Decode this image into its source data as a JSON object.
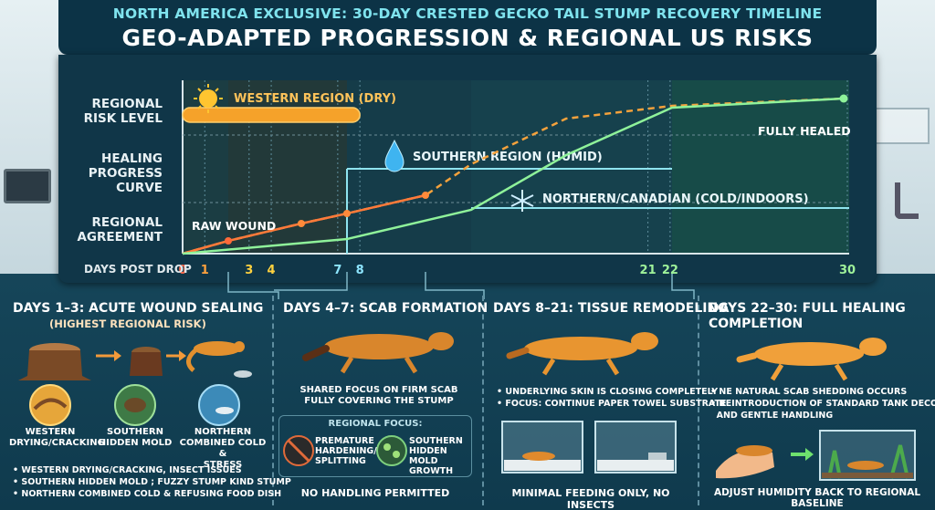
{
  "header": {
    "subtitle": "NORTH AMERICA EXCLUSIVE: 30-DAY CRESTED GECKO TAIL STUMP RECOVERY TIMELINE",
    "title": "GEO-ADAPTED PROGRESSION & REGIONAL US RISKS"
  },
  "row_labels": {
    "risk": [
      "REGIONAL",
      "RISK LEVEL"
    ],
    "healing": [
      "HEALING",
      "PROGRESS",
      "CURVE"
    ],
    "agreement": [
      "REGIONAL",
      "AGREEMENT"
    ]
  },
  "timeline": {
    "axis_label": "DAYS POST DROP",
    "ticks": [
      {
        "day": 0,
        "label": "0",
        "color": "#ff6a4a"
      },
      {
        "day": 1,
        "label": "1",
        "color": "#ffa13d"
      },
      {
        "day": 3,
        "label": "3",
        "color": "#ffd23f"
      },
      {
        "day": 4,
        "label": "4",
        "color": "#ffd23f"
      },
      {
        "day": 7,
        "label": "7",
        "color": "#8ee6ff"
      },
      {
        "day": 8,
        "label": "8",
        "color": "#8ee6ff"
      },
      {
        "day": 21,
        "label": "21",
        "color": "#9ff29a"
      },
      {
        "day": 22,
        "label": "22",
        "color": "#9ff29a"
      },
      {
        "day": 30,
        "label": "30",
        "color": "#9ff29a"
      }
    ],
    "western_label": "WESTERN REGION (DRY)",
    "southern_label": "SOUTHERN REGION (HUMID)",
    "northern_label": "NORTHERN/CANADIAN (COLD/INDOORS)",
    "raw_wound_label": "RAW WOUND",
    "fully_healed_label": "FULLY HEALED",
    "western_range": [
      0,
      8
    ],
    "southern_range": [
      4,
      21
    ],
    "northern_range": [
      8,
      30
    ]
  },
  "sections": {
    "s1": {
      "title": "DAYS 1–3: ACUTE WOUND SEALING",
      "subtitle": "(HIGHEST REGIONAL RISK)",
      "icons": [
        {
          "label": "WESTERN\nDRYING/CRACKING",
          "l1": "WESTERN",
          "l2": "DRYING/CRACKING"
        },
        {
          "label": "SOUTHERN\nHIDDEN MOLD",
          "l1": "SOUTHERN",
          "l2": "HIDDEN MOLD"
        },
        {
          "label": "NORTHERN\nCOMBINED COLD &\nSTRESS",
          "l1": "NORTHERN",
          "l2": "COMBINED COLD &",
          "l3": "STRESS"
        }
      ],
      "bullets": [
        "• WESTERN DRYING/CRACKING, INSECT ISSUES",
        "• SOUTHERN HIDDEN MOLD ; FUZZY STUMP KIND STUMP",
        "• NORTHERN COMBINED COLD & REFUSING FOOD DISH"
      ]
    },
    "s2": {
      "title": "DAYS 4–7: SCAB FORMATION",
      "desc1": "SHARED FOCUS ON FIRM SCAB",
      "desc2": "FULLY COVERING THE STUMP",
      "regional_focus": "REGIONAL FOCUS:",
      "focus_a1": "PREMATURE",
      "focus_a2": "HARDENING/",
      "focus_a3": "SPLITTING",
      "focus_b1": "SOUTHERN",
      "focus_b2": "HIDDEN MOLD",
      "focus_b3": "GROWTH",
      "footer": "NO HANDLING PERMITTED"
    },
    "s3": {
      "title": "DAYS 8–21: TISSUE REMODELING",
      "bullets": [
        "• UNDERLYING SKIN IS CLOSING COMPLETELY",
        "• FOCUS: CONTINUE PAPER TOWEL SUBSTRATE"
      ],
      "footer": "MINIMAL FEEDING ONLY, NO INSECTS"
    },
    "s4": {
      "title1": "DAYS 22–30: FULL HEALING",
      "title2": "COMPLETION",
      "bullets": [
        "• NE NATURAL SCAB SHEDDING OCCURS",
        "• REINTRODUCTION OF STANDARD TANK DECOR",
        "  AND GENTLE HANDLING"
      ],
      "footer": "ADJUST HUMIDITY BACK TO REGIONAL BASELINE"
    }
  }
}
